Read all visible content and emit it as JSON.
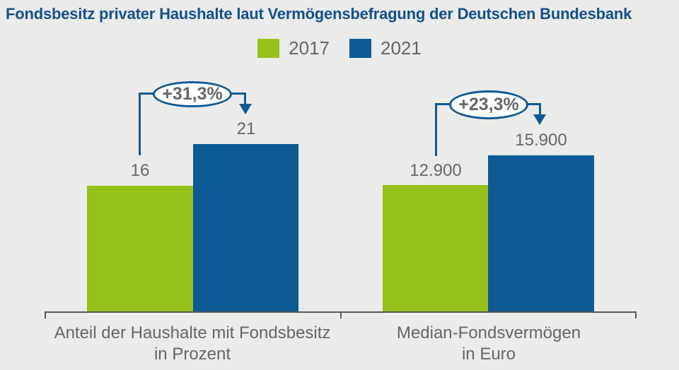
{
  "title": "Fondsbesitz privater Haushalte laut Vermögensbefragung der Deutschen Bundesbank",
  "legend": {
    "items": [
      {
        "label": "2017",
        "color": "#96c01a"
      },
      {
        "label": "2021",
        "color": "#0e5a94"
      }
    ]
  },
  "chart_data": {
    "type": "bar",
    "title": "Fondsbesitz privater Haushalte laut Vermögensbefragung der Deutschen Bundesbank",
    "legend_position": "top-center",
    "background_color": "#ebebe9",
    "series_colors": {
      "2017": "#96c01a",
      "2021": "#0e5a94"
    },
    "value_label_color": "#666666",
    "title_color": "#154f8b",
    "groups": [
      {
        "label_line1": "Anteil der Haushalte mit Fondsbesitz",
        "label_line2": "in Prozent",
        "change": "+31,3%",
        "bars": [
          {
            "year": "2017",
            "value": 16,
            "display": "16"
          },
          {
            "year": "2021",
            "value": 21,
            "display": "21"
          }
        ]
      },
      {
        "label_line1": "Median-Fondsvermögen",
        "label_line2": "in Euro",
        "change": "+23,3%",
        "bars": [
          {
            "year": "2017",
            "value": 12900,
            "display": "12.900"
          },
          {
            "year": "2021",
            "value": 15900,
            "display": "15.900"
          }
        ]
      }
    ]
  }
}
